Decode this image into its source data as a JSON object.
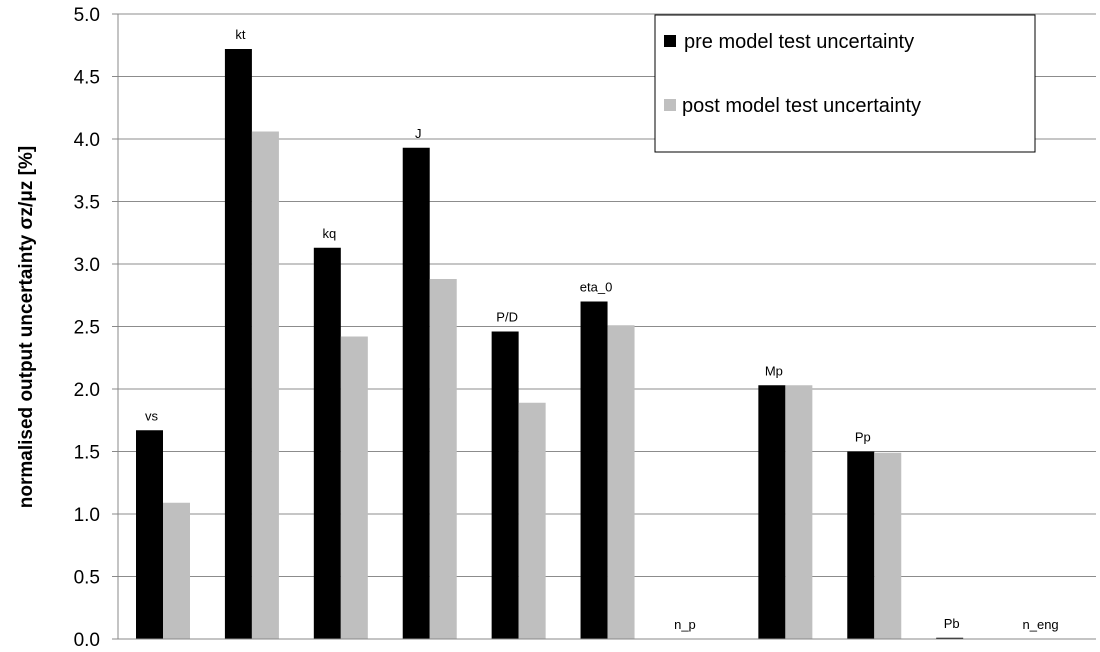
{
  "chart_data": {
    "type": "bar",
    "categories": [
      "vs",
      "kt",
      "kq",
      "J",
      "P/D",
      "eta_0",
      "n_p",
      "Mp",
      "Pp",
      "Pb",
      "n_eng"
    ],
    "series": [
      {
        "name": "pre model  test uncertainty",
        "color": "#000000",
        "values": [
          1.67,
          4.72,
          3.13,
          3.93,
          2.46,
          2.7,
          0.0,
          2.03,
          1.5,
          0.01,
          0.0
        ]
      },
      {
        "name": "post model test uncertainty",
        "color": "#bfbfbf",
        "values": [
          1.09,
          4.06,
          2.42,
          2.88,
          1.89,
          2.51,
          0.0,
          2.03,
          1.49,
          0.0,
          0.0
        ]
      }
    ],
    "ylabel": "normalised output uncertainty σz/μz  [%]",
    "ylim": [
      0,
      5
    ],
    "yticks": [
      "0.0",
      "0.5",
      "1.0",
      "1.5",
      "2.0",
      "2.5",
      "3.0",
      "3.5",
      "4.0",
      "4.5",
      "5.0"
    ],
    "grid": true,
    "legend_position": "top-right"
  }
}
